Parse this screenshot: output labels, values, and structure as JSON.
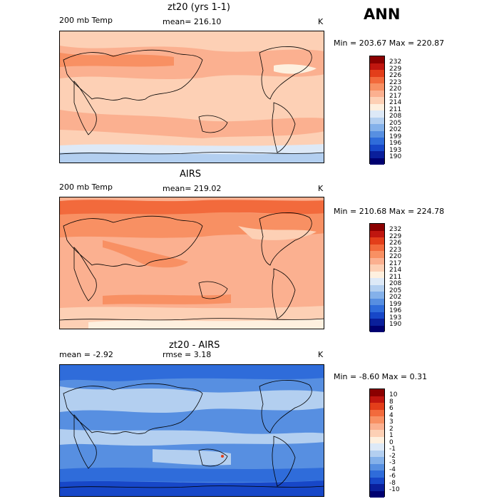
{
  "season": "ANN",
  "panels": [
    {
      "title": "zt20 (yrs 1-1)",
      "field": "200 mb Temp",
      "mean_label": "mean= 216.10",
      "units": "K",
      "minmax": "Min = 203.67 Max = 220.87"
    },
    {
      "title": "AIRS",
      "field": "200 mb Temp",
      "mean_label": "mean= 219.02",
      "units": "K",
      "minmax": "Min = 210.68 Max = 224.78"
    },
    {
      "title": "zt20 - AIRS",
      "left_label": "mean =   -2.92",
      "rmse_label": "rmse =   3.18",
      "units": "K",
      "minmax": "Min =  -8.60 Max =   0.31"
    }
  ],
  "colorbar_temp": {
    "labels": [
      "232",
      "229",
      "226",
      "223",
      "220",
      "217",
      "214",
      "211",
      "208",
      "205",
      "202",
      "199",
      "196",
      "193",
      "190"
    ],
    "colors": [
      "#8b0000",
      "#c0160f",
      "#e33e1a",
      "#f26a3c",
      "#f89063",
      "#fbb090",
      "#fdd0b5",
      "#fef0df",
      "#dde9f7",
      "#b3cff0",
      "#84b1ea",
      "#578fe1",
      "#2f6cda",
      "#1747c8",
      "#0a1f9b",
      "#000070"
    ]
  },
  "colorbar_diff": {
    "labels": [
      "10",
      "8",
      "6",
      "4",
      "3",
      "2",
      "1",
      "0",
      "-1",
      "-2",
      "-3",
      "-4",
      "-6",
      "-8",
      "-10"
    ],
    "colors": [
      "#8b0000",
      "#c0160f",
      "#e33e1a",
      "#f26a3c",
      "#f89063",
      "#fbb090",
      "#fdd0b5",
      "#fef0df",
      "#dde9f7",
      "#b3cff0",
      "#84b1ea",
      "#578fe1",
      "#2f6cda",
      "#1747c8",
      "#0a1f9b",
      "#000070"
    ]
  },
  "colors": {
    "c217": "#fbb090",
    "c220": "#f89063",
    "c223": "#f26a3c",
    "c214": "#fdd0b5",
    "c211": "#fef0df",
    "c208": "#dde9f7",
    "c205": "#b3cff0",
    "dLight": "#b3cff0",
    "dMid": "#578fe1",
    "dDark": "#2f6cda",
    "dDeep": "#1747c8"
  }
}
